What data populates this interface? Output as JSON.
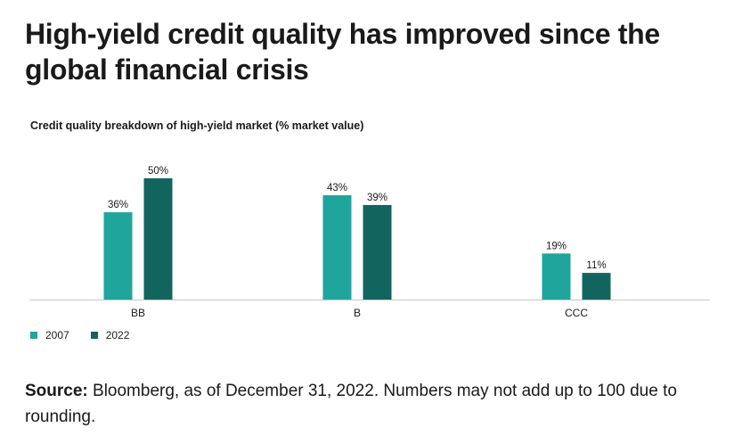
{
  "header": {
    "title": "High-yield credit quality has improved since the global financial crisis"
  },
  "chart_data": {
    "type": "bar",
    "title": "Credit quality breakdown of high-yield market (% market value)",
    "categories": [
      "BB",
      "B",
      "CCC"
    ],
    "series": [
      {
        "name": "2007",
        "values": [
          36,
          43,
          19
        ],
        "color": "#1fa59b"
      },
      {
        "name": "2022",
        "values": [
          50,
          39,
          11
        ],
        "color": "#12655e"
      }
    ],
    "value_suffix": "%",
    "ylim": [
      0,
      50
    ],
    "grid": false,
    "legend": "bottom-left"
  },
  "footer": {
    "source_label": "Source:",
    "source_text": " Bloomberg, as of December 31, 2022. Numbers may not add up to 100 due to rounding."
  }
}
